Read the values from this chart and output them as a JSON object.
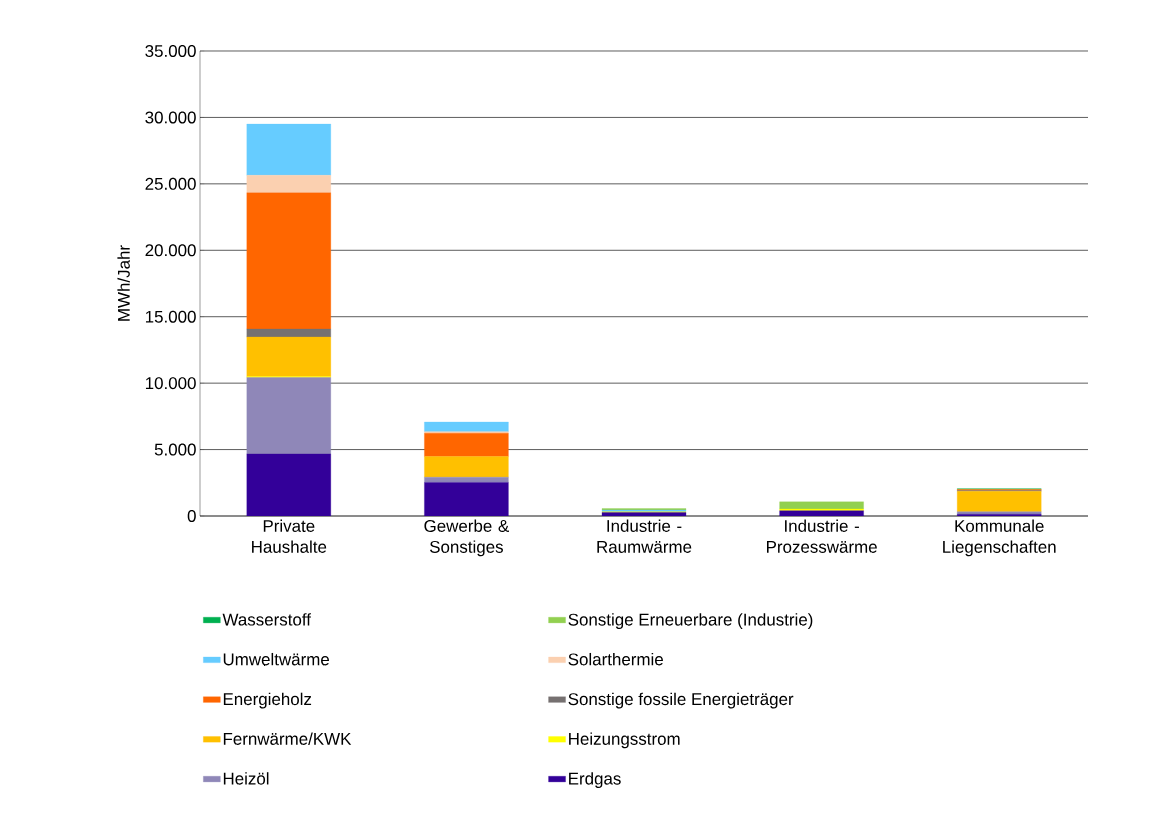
{
  "chart_data": {
    "type": "bar",
    "stacked": true,
    "ylabel": "MWh/Jahr",
    "categories": [
      "Private Haushalte",
      "Gewerbe & Sonstiges",
      "Industrie - Raumwärme",
      "Industrie - Prozesswärme",
      "Kommunale Liegenschaften"
    ],
    "series": [
      {
        "name": "Erdgas",
        "color": "#330099",
        "values": [
          4675,
          2525,
          270,
          400,
          135
        ]
      },
      {
        "name": "Heizöl",
        "color": "#8f87b8",
        "values": [
          5750,
          400,
          0,
          0,
          190
        ]
      },
      {
        "name": "Heizungsstrom",
        "color": "#ffff00",
        "values": [
          75,
          0,
          50,
          130,
          0
        ]
      },
      {
        "name": "Fernwärme/KWK",
        "color": "#ffc000",
        "values": [
          2975,
          1550,
          0,
          0,
          1530
        ]
      },
      {
        "name": "Sonstige fossile Energieträger",
        "color": "#767171",
        "values": [
          600,
          0,
          0,
          0,
          70
        ]
      },
      {
        "name": "Energieholz",
        "color": "#ff6600",
        "values": [
          10250,
          1750,
          0,
          0,
          70
        ]
      },
      {
        "name": "Solarthermie",
        "color": "#fbd0b0",
        "values": [
          1325,
          125,
          0,
          0,
          0
        ]
      },
      {
        "name": "Umweltwärme",
        "color": "#66ccff",
        "values": [
          3850,
          725,
          130,
          0,
          0
        ]
      },
      {
        "name": "Sonstige Erneuerbare (Industrie)",
        "color": "#92d050",
        "values": [
          0,
          0,
          110,
          540,
          30
        ]
      },
      {
        "name": "Wasserstoff",
        "color": "#00b050",
        "values": [
          0,
          0,
          0,
          0,
          30
        ]
      }
    ],
    "ylim": [
      0,
      35000
    ],
    "yticks": [
      {
        "value": 0,
        "label": "0"
      },
      {
        "value": 5000,
        "label": "5.000"
      },
      {
        "value": 10000,
        "label": "10.000"
      },
      {
        "value": 15000,
        "label": "15.000"
      },
      {
        "value": 20000,
        "label": "20.000"
      },
      {
        "value": 25000,
        "label": "25.000"
      },
      {
        "value": 30000,
        "label": "30.000"
      },
      {
        "value": 35000,
        "label": "35.000"
      }
    ],
    "grid": "y",
    "legend": "bottom"
  }
}
